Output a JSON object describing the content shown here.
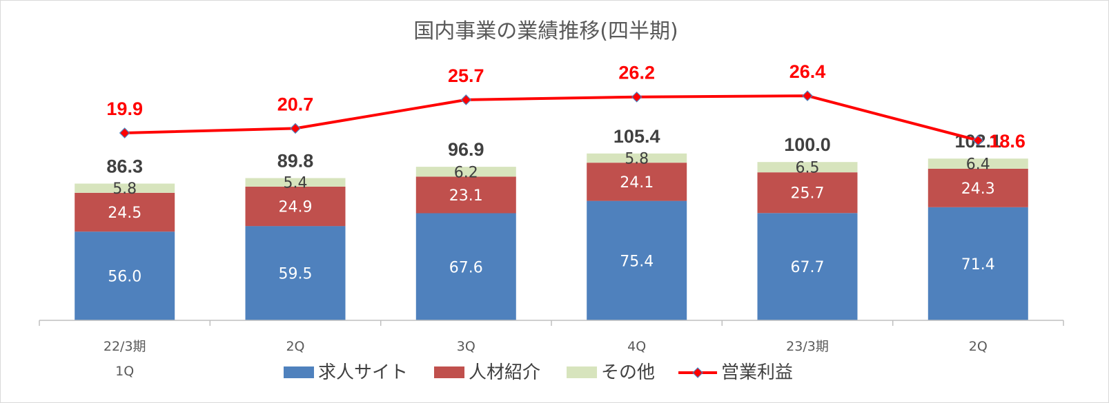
{
  "chart_data": {
    "type": "bar",
    "title": "国内事業の業績推移(四半期)",
    "categories": [
      [
        "22/3期",
        "1Q"
      ],
      [
        "2Q"
      ],
      [
        "3Q"
      ],
      [
        "4Q"
      ],
      [
        "23/3期"
      ],
      [
        "2Q"
      ]
    ],
    "stacked": true,
    "series": [
      {
        "name": "求人サイト",
        "type": "bar",
        "color": "#4f81bd",
        "label_color": "#ffffff",
        "values": [
          56.0,
          59.5,
          67.6,
          75.4,
          67.7,
          71.4
        ]
      },
      {
        "name": "人材紹介",
        "type": "bar",
        "color": "#c0504d",
        "label_color": "#ffffff",
        "values": [
          24.5,
          24.9,
          23.1,
          24.1,
          25.7,
          24.3
        ]
      },
      {
        "name": "その他",
        "type": "bar",
        "color": "#d7e4bd",
        "label_color": "#404040",
        "values": [
          5.8,
          5.4,
          6.2,
          5.8,
          6.5,
          6.4
        ]
      },
      {
        "name": "営業利益",
        "type": "line",
        "color": "#ff0000",
        "marker": "diamond",
        "values": [
          19.9,
          20.7,
          25.7,
          26.2,
          26.4,
          18.6
        ]
      }
    ],
    "totals": [
      86.3,
      89.8,
      96.9,
      105.4,
      100.0,
      102.1
    ],
    "legend_position": "bottom",
    "grid": false
  }
}
